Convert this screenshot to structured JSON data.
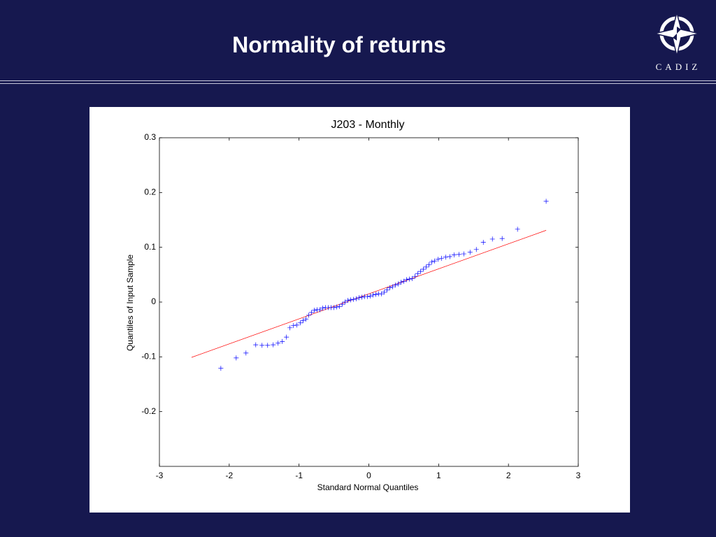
{
  "slide": {
    "title": "Normality of returns",
    "logo": "CADIZ"
  },
  "chart_data": {
    "type": "scatter",
    "title": "J203 - Monthly",
    "x_label": "Standard Normal Quantiles",
    "y_label": "Quantiles of Input Sample",
    "x": [
      -2.12,
      -1.9,
      -1.76,
      -1.62,
      -1.53,
      -1.45,
      -1.37,
      -1.3,
      -1.24,
      -1.18,
      -1.13,
      -1.08,
      -1.03,
      -0.98,
      -0.94,
      -0.9,
      -0.86,
      -0.82,
      -0.78,
      -0.74,
      -0.7,
      -0.66,
      -0.62,
      -0.58,
      -0.54,
      -0.5,
      -0.46,
      -0.42,
      -0.38,
      -0.34,
      -0.3,
      -0.26,
      -0.22,
      -0.18,
      -0.14,
      -0.1,
      -0.06,
      -0.02,
      0.02,
      0.06,
      0.1,
      0.14,
      0.18,
      0.22,
      0.26,
      0.3,
      0.34,
      0.38,
      0.42,
      0.46,
      0.5,
      0.54,
      0.58,
      0.62,
      0.66,
      0.7,
      0.74,
      0.78,
      0.82,
      0.86,
      0.9,
      0.94,
      0.99,
      1.04,
      1.1,
      1.16,
      1.22,
      1.29,
      1.36,
      1.45,
      1.54,
      1.64,
      1.77,
      1.91,
      2.13,
      2.54
    ],
    "values": [
      -0.121,
      -0.102,
      -0.093,
      -0.078,
      -0.079,
      -0.079,
      -0.078,
      -0.075,
      -0.072,
      -0.064,
      -0.047,
      -0.043,
      -0.042,
      -0.038,
      -0.034,
      -0.031,
      -0.024,
      -0.019,
      -0.015,
      -0.014,
      -0.014,
      -0.011,
      -0.01,
      -0.01,
      -0.01,
      -0.01,
      -0.009,
      -0.008,
      -0.004,
      0.0,
      0.003,
      0.004,
      0.005,
      0.006,
      0.008,
      0.009,
      0.01,
      0.01,
      0.011,
      0.013,
      0.014,
      0.015,
      0.015,
      0.018,
      0.022,
      0.026,
      0.028,
      0.031,
      0.033,
      0.036,
      0.038,
      0.041,
      0.042,
      0.043,
      0.047,
      0.052,
      0.056,
      0.06,
      0.064,
      0.068,
      0.073,
      0.075,
      0.078,
      0.08,
      0.082,
      0.083,
      0.086,
      0.087,
      0.088,
      0.091,
      0.096,
      0.109,
      0.115,
      0.116,
      0.133,
      0.184
    ],
    "color": "#0000ff",
    "reference_line": {
      "x": [
        -2.54,
        2.54
      ],
      "y": [
        -0.101,
        0.131
      ],
      "color": "#ff0000"
    },
    "xlim": [
      -3,
      3
    ],
    "ylim": [
      -0.3,
      0.3
    ],
    "xticks": [
      -3,
      -2,
      -1,
      0,
      1,
      2,
      3
    ],
    "yticks": [
      -0.2,
      -0.1,
      0,
      0.1,
      0.2,
      0.3
    ]
  }
}
